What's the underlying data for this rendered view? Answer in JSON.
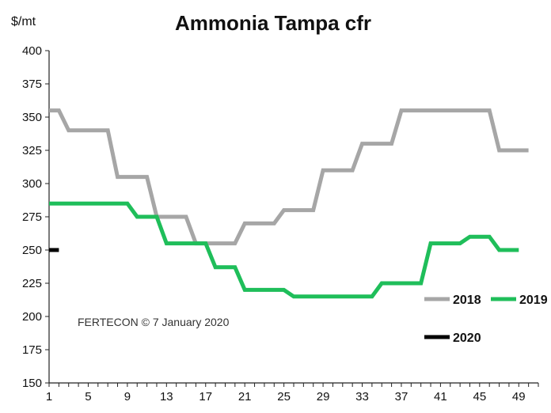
{
  "chart_data": {
    "type": "line",
    "title": "Ammonia Tampa  cfr",
    "ylabel": "$/mt",
    "xlabel": "",
    "ylim": [
      150,
      400
    ],
    "xlim": [
      1,
      51
    ],
    "yticks": [
      150,
      175,
      200,
      225,
      250,
      275,
      300,
      325,
      350,
      375,
      400
    ],
    "xticks": [
      1,
      5,
      9,
      13,
      17,
      21,
      25,
      29,
      33,
      37,
      41,
      45,
      49
    ],
    "grid": false,
    "legend_position": "bottom-right",
    "annotation": "FERTECON ©   7 January 2020",
    "colors": {
      "2018": "#a6a6a6",
      "2019": "#1fbe5a",
      "2020": "#000000"
    },
    "series": [
      {
        "name": "2018",
        "points": [
          [
            1,
            355
          ],
          [
            2,
            355
          ],
          [
            3,
            340
          ],
          [
            7,
            340
          ],
          [
            8,
            305
          ],
          [
            11,
            305
          ],
          [
            12,
            275
          ],
          [
            15,
            275
          ],
          [
            16,
            255
          ],
          [
            20,
            255
          ],
          [
            21,
            270
          ],
          [
            24,
            270
          ],
          [
            25,
            280
          ],
          [
            28,
            280
          ],
          [
            29,
            310
          ],
          [
            32,
            310
          ],
          [
            33,
            330
          ],
          [
            36,
            330
          ],
          [
            37,
            355
          ],
          [
            46,
            355
          ],
          [
            47,
            325
          ],
          [
            50,
            325
          ]
        ]
      },
      {
        "name": "2019",
        "points": [
          [
            1,
            285
          ],
          [
            9,
            285
          ],
          [
            10,
            275
          ],
          [
            12,
            275
          ],
          [
            13,
            255
          ],
          [
            17,
            255
          ],
          [
            18,
            237
          ],
          [
            20,
            237
          ],
          [
            21,
            220
          ],
          [
            25,
            220
          ],
          [
            26,
            215
          ],
          [
            34,
            215
          ],
          [
            35,
            225
          ],
          [
            39,
            225
          ],
          [
            40,
            255
          ],
          [
            43,
            255
          ],
          [
            44,
            260
          ],
          [
            46,
            260
          ],
          [
            47,
            250
          ],
          [
            49,
            250
          ]
        ]
      },
      {
        "name": "2020",
        "points": [
          [
            1,
            250
          ],
          [
            2,
            250
          ]
        ]
      }
    ]
  }
}
